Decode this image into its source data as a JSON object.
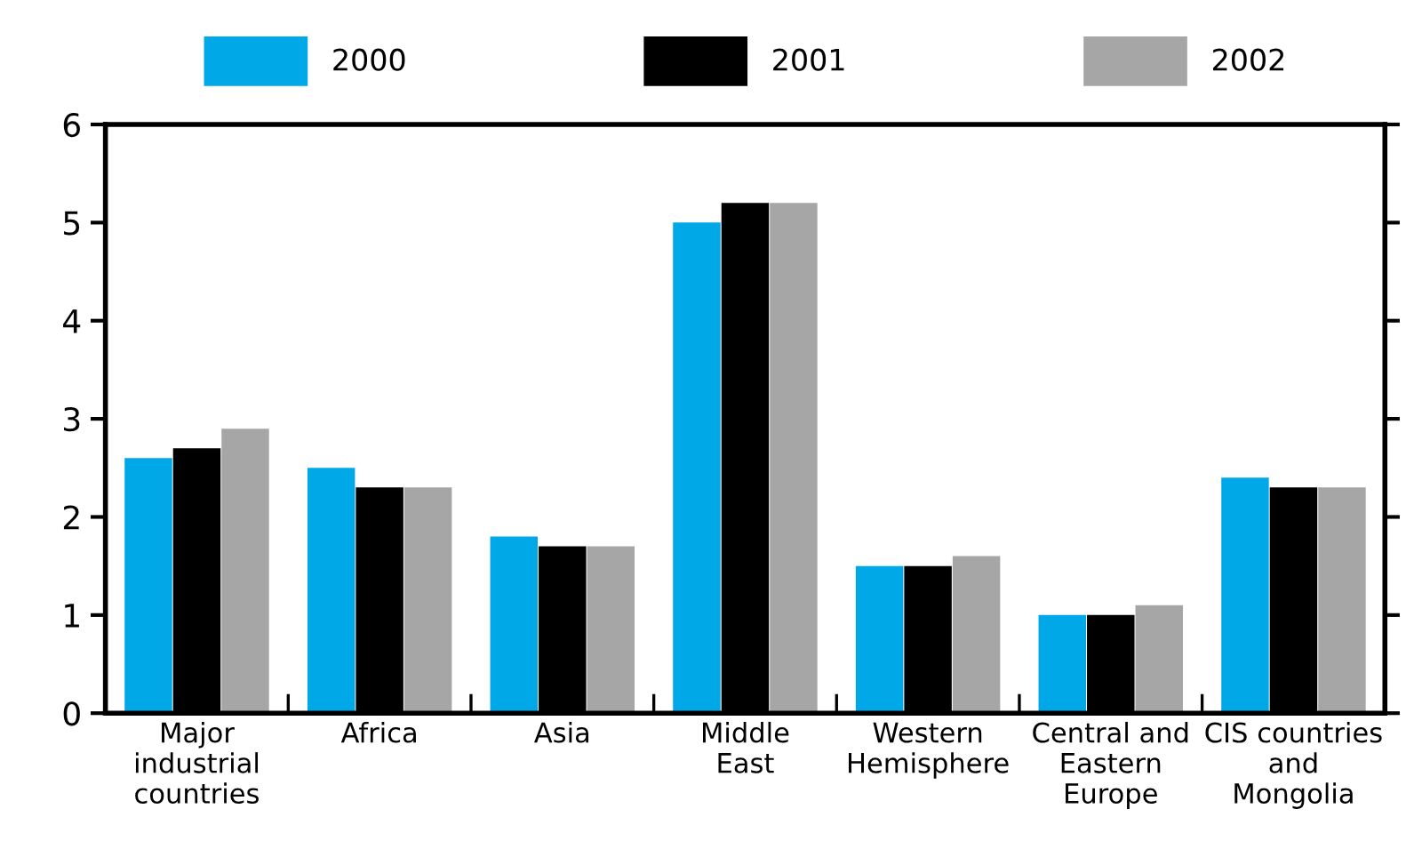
{
  "chart_data": {
    "type": "bar",
    "categories": [
      "Major\nindustrial\ncountries",
      "Africa",
      "Asia",
      "Middle\nEast",
      "Western\nHemisphere",
      "Central and\nEastern\nEurope",
      "CIS countries\nand\nMongolia"
    ],
    "series": [
      {
        "name": "2000",
        "color": "#00a8e8",
        "values": [
          2.6,
          2.5,
          1.8,
          5.0,
          1.5,
          1.0,
          2.4
        ]
      },
      {
        "name": "2001",
        "color": "#000000",
        "values": [
          2.7,
          2.3,
          1.7,
          5.2,
          1.5,
          1.0,
          2.3
        ]
      },
      {
        "name": "2002",
        "color": "#a6a6a6",
        "values": [
          2.9,
          2.3,
          1.7,
          5.2,
          1.6,
          1.1,
          2.3
        ]
      }
    ],
    "ylim": [
      0,
      6
    ],
    "yticks": [
      0,
      1,
      2,
      3,
      4,
      5,
      6
    ],
    "grid": false,
    "legend": "top"
  }
}
